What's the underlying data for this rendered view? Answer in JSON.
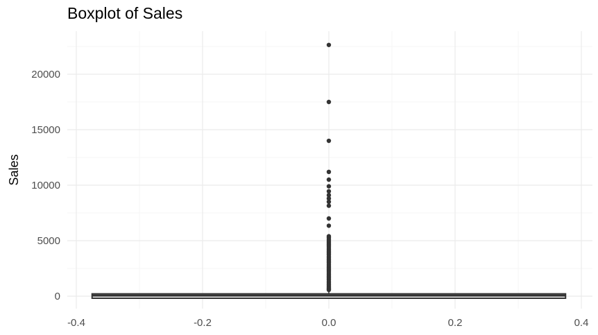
{
  "chart_data": {
    "type": "boxplot",
    "title": "Boxplot of Sales",
    "xlabel": "",
    "ylabel": "Sales",
    "xlim": [
      -0.4,
      0.4
    ],
    "ylim": [
      0,
      22700
    ],
    "x_ticks": [
      -0.4,
      -0.2,
      0.0,
      0.2,
      0.4
    ],
    "x_tick_labels": [
      "-0.4",
      "-0.2",
      "0.0",
      "0.2",
      "0.4"
    ],
    "y_ticks": [
      0,
      5000,
      10000,
      15000,
      20000
    ],
    "y_tick_labels": [
      "0",
      "5000",
      "10000",
      "15000",
      "20000"
    ],
    "grid": true,
    "box": {
      "x_center": 0.0,
      "x_half_width": 0.375,
      "whisker_low": 0,
      "q1": 17,
      "median": 54,
      "q3": 210,
      "whisker_high": 520
    },
    "outliers": [
      22638,
      17500,
      13999,
      11200,
      10500,
      9900,
      9450,
      9100,
      8800,
      8500,
      8150,
      7000,
      6350,
      5400,
      5250,
      5100,
      4950,
      4800,
      4650,
      4500,
      4350,
      4200,
      4050,
      3900,
      3750,
      3600,
      3450,
      3300,
      3150,
      3000,
      2850,
      2700,
      2550,
      2400,
      2250,
      2100,
      1950,
      1800,
      1650,
      1500,
      1350,
      1200,
      1050,
      900,
      750,
      650,
      560
    ]
  },
  "colors": {
    "box": "#333333",
    "outlier": "#333333",
    "grid_major": "#ebebeb",
    "grid_minor": "#f5f5f5",
    "tick_text": "#4d4d4d",
    "title_text": "#000000"
  }
}
